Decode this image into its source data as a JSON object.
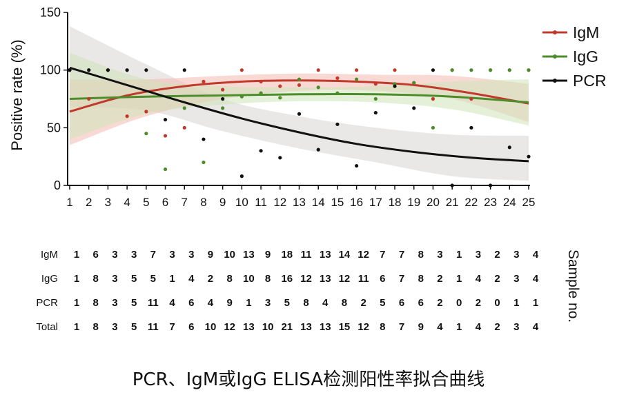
{
  "caption": "PCR、IgM或IgG ELISA检测阳性率拟合曲线",
  "chart_data": {
    "type": "scatter",
    "ylabel": "Positive rate (%)",
    "xlabel": "",
    "xlim": [
      1,
      25
    ],
    "ylim": [
      0,
      150
    ],
    "yticks": [
      0,
      50,
      100,
      150
    ],
    "x": [
      1,
      2,
      3,
      4,
      5,
      6,
      7,
      8,
      9,
      10,
      11,
      12,
      13,
      14,
      15,
      16,
      17,
      18,
      19,
      20,
      21,
      22,
      23,
      24,
      25
    ],
    "legend_position": "top-right",
    "series": [
      {
        "name": "IgM",
        "color": "#c0392b",
        "band_color": "#f4b9b1",
        "points": [
          [
            1,
            100
          ],
          [
            2,
            75
          ],
          [
            3,
            100
          ],
          [
            4,
            60
          ],
          [
            5,
            64
          ],
          [
            6,
            43
          ],
          [
            7,
            50
          ],
          [
            8,
            90
          ],
          [
            9,
            83
          ],
          [
            10,
            100
          ],
          [
            11,
            90
          ],
          [
            12,
            86
          ],
          [
            13,
            87
          ],
          [
            14,
            100
          ],
          [
            15,
            93
          ],
          [
            16,
            100
          ],
          [
            17,
            88
          ],
          [
            18,
            100
          ],
          [
            19,
            89
          ],
          [
            20,
            75
          ],
          [
            21,
            100
          ],
          [
            22,
            75
          ],
          [
            23,
            100
          ],
          [
            24,
            100
          ],
          [
            25,
            100
          ]
        ],
        "fit": [
          [
            1,
            64
          ],
          [
            4,
            78
          ],
          [
            7,
            86
          ],
          [
            10,
            90
          ],
          [
            13,
            91
          ],
          [
            16,
            90
          ],
          [
            19,
            87
          ],
          [
            22,
            80
          ],
          [
            25,
            71
          ]
        ],
        "band": [
          [
            1,
            35,
            92
          ],
          [
            5,
            60,
            92
          ],
          [
            9,
            75,
            95
          ],
          [
            13,
            82,
            97
          ],
          [
            17,
            82,
            96
          ],
          [
            21,
            75,
            95
          ],
          [
            25,
            55,
            88
          ]
        ]
      },
      {
        "name": "IgG",
        "color": "#4c8c2b",
        "band_color": "#cde3b8",
        "points": [
          [
            1,
            100
          ],
          [
            2,
            100
          ],
          [
            3,
            100
          ],
          [
            4,
            100
          ],
          [
            5,
            45
          ],
          [
            6,
            14
          ],
          [
            7,
            67
          ],
          [
            8,
            20
          ],
          [
            9,
            67
          ],
          [
            10,
            77
          ],
          [
            11,
            80
          ],
          [
            12,
            76
          ],
          [
            13,
            92
          ],
          [
            14,
            85
          ],
          [
            15,
            80
          ],
          [
            16,
            92
          ],
          [
            17,
            75
          ],
          [
            18,
            88
          ],
          [
            19,
            89
          ],
          [
            20,
            50
          ],
          [
            21,
            100
          ],
          [
            22,
            100
          ],
          [
            23,
            100
          ],
          [
            24,
            100
          ],
          [
            25,
            100
          ]
        ],
        "fit": [
          [
            1,
            75
          ],
          [
            5,
            77
          ],
          [
            9,
            78
          ],
          [
            13,
            79
          ],
          [
            17,
            79
          ],
          [
            21,
            77
          ],
          [
            25,
            72
          ]
        ],
        "band": [
          [
            1,
            40,
            115
          ],
          [
            5,
            62,
            92
          ],
          [
            9,
            70,
            86
          ],
          [
            13,
            73,
            85
          ],
          [
            17,
            72,
            86
          ],
          [
            21,
            66,
            90
          ],
          [
            25,
            52,
            92
          ]
        ]
      },
      {
        "name": "PCR",
        "color": "#111111",
        "band_color": "#d9d3d3",
        "points": [
          [
            1,
            100
          ],
          [
            2,
            100
          ],
          [
            3,
            100
          ],
          [
            4,
            100
          ],
          [
            5,
            100
          ],
          [
            6,
            57
          ],
          [
            7,
            100
          ],
          [
            8,
            40
          ],
          [
            9,
            75
          ],
          [
            10,
            8
          ],
          [
            11,
            30
          ],
          [
            12,
            24
          ],
          [
            13,
            62
          ],
          [
            14,
            31
          ],
          [
            15,
            53
          ],
          [
            16,
            17
          ],
          [
            17,
            63
          ],
          [
            18,
            86
          ],
          [
            19,
            67
          ],
          [
            20,
            100
          ],
          [
            21,
            0
          ],
          [
            22,
            50
          ],
          [
            23,
            0
          ],
          [
            24,
            33
          ],
          [
            25,
            25
          ]
        ],
        "fit": [
          [
            1,
            102
          ],
          [
            4,
            87
          ],
          [
            7,
            72
          ],
          [
            10,
            58
          ],
          [
            13,
            46
          ],
          [
            16,
            36
          ],
          [
            19,
            29
          ],
          [
            22,
            24
          ],
          [
            25,
            21
          ]
        ],
        "band": [
          [
            1,
            68,
            138
          ],
          [
            5,
            65,
            105
          ],
          [
            9,
            47,
            75
          ],
          [
            13,
            32,
            60
          ],
          [
            17,
            20,
            50
          ],
          [
            21,
            8,
            44
          ],
          [
            25,
            4,
            43
          ]
        ]
      }
    ],
    "table": {
      "side_label": "Sample no.",
      "rows": [
        {
          "label": "IgM",
          "values": [
            "1",
            "6",
            "3",
            "3",
            "7",
            "3",
            "3",
            "9",
            "10",
            "13",
            "9",
            "18",
            "11",
            "13",
            "14",
            "12",
            "7",
            "7",
            "8",
            "3",
            "1",
            "3",
            "2",
            "3",
            "4"
          ]
        },
        {
          "label": "IgG",
          "values": [
            "1",
            "8",
            "3",
            "5",
            "5",
            "1",
            "4",
            "2",
            "8",
            "10",
            "8",
            "16",
            "12",
            "13",
            "12",
            "11",
            "6",
            "7",
            "8",
            "2",
            "1",
            "4",
            "2",
            "3",
            "4"
          ]
        },
        {
          "label": "PCR",
          "values": [
            "1",
            "8",
            "3",
            "5",
            "11",
            "4",
            "6",
            "4",
            "9",
            "1",
            "3",
            "5",
            "8",
            "4",
            "8",
            "2",
            "5",
            "6",
            "6",
            "2",
            "0",
            "2",
            "0",
            "1",
            "1"
          ]
        },
        {
          "label": "Total",
          "values": [
            "1",
            "8",
            "3",
            "5",
            "11",
            "7",
            "6",
            "10",
            "12",
            "13",
            "10",
            "21",
            "13",
            "13",
            "15",
            "12",
            "8",
            "7",
            "9",
            "4",
            "1",
            "4",
            "2",
            "3",
            "4"
          ]
        }
      ]
    }
  }
}
